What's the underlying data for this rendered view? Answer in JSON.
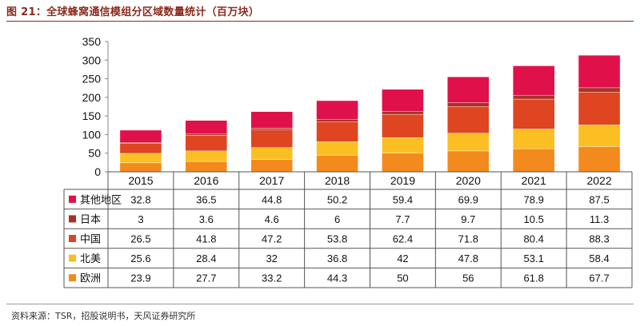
{
  "header": {
    "title": "图 21：全球蜂窝通信模组分区域数量统计（百万块）"
  },
  "footer": {
    "source": "资料来源：TSR，招股说明书，天风证券研究所"
  },
  "colors": {
    "accent": "#8B2A1D"
  },
  "chart_data": {
    "type": "bar",
    "stacked": true,
    "categories": [
      "2015",
      "2016",
      "2017",
      "2018",
      "2019",
      "2020",
      "2021",
      "2022"
    ],
    "series": [
      {
        "name": "欧洲",
        "color": "#F28A1E",
        "values": [
          23.9,
          27.7,
          33.2,
          44.3,
          50,
          56,
          61.8,
          67.7
        ]
      },
      {
        "name": "北美",
        "color": "#FBBF24",
        "values": [
          25.6,
          28.4,
          32,
          36.8,
          42,
          47.8,
          53.1,
          58.4
        ]
      },
      {
        "name": "中国",
        "color": "#DE4520",
        "values": [
          26.5,
          41.8,
          47.2,
          53.8,
          62.4,
          71.8,
          80.4,
          88.3
        ]
      },
      {
        "name": "日本",
        "color": "#A8322A",
        "values": [
          3,
          3.6,
          4.6,
          6,
          7.7,
          9.7,
          10.5,
          11.3
        ]
      },
      {
        "name": "其他地区",
        "color": "#E0104A",
        "values": [
          32.8,
          36.5,
          44.8,
          50.2,
          59.4,
          69.9,
          78.9,
          87.5
        ]
      }
    ],
    "table_order": [
      "其他地区",
      "日本",
      "中国",
      "北美",
      "欧洲"
    ],
    "ylim": [
      0,
      350
    ],
    "yticks": [
      0,
      50,
      100,
      150,
      200,
      250,
      300,
      350
    ],
    "grid": false,
    "legend": "data-table"
  }
}
